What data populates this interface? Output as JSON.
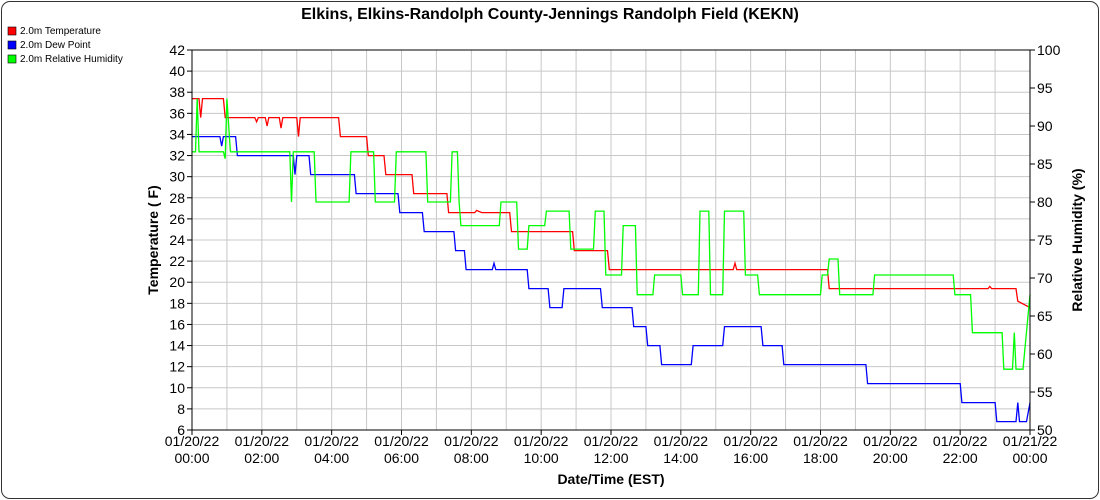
{
  "chart_data": {
    "type": "line",
    "title": "Elkins, Elkins-Randolph County-Jennings Randolph Field (KEKN)",
    "xlabel": "Date/Time (EST)",
    "ylabel": "Temperature ( F)",
    "y2label": "Relative Humidity (%)",
    "ylim": [
      6,
      42
    ],
    "y2lim": [
      50,
      100
    ],
    "xlim": [
      0,
      24
    ],
    "grid": true,
    "legend_position": "top-left",
    "x_ticks": [
      {
        "value": 0,
        "date": "01/20/22",
        "time": "00:00"
      },
      {
        "value": 2,
        "date": "01/20/22",
        "time": "02:00"
      },
      {
        "value": 4,
        "date": "01/20/22",
        "time": "04:00"
      },
      {
        "value": 6,
        "date": "01/20/22",
        "time": "06:00"
      },
      {
        "value": 8,
        "date": "01/20/22",
        "time": "08:00"
      },
      {
        "value": 10,
        "date": "01/20/22",
        "time": "10:00"
      },
      {
        "value": 12,
        "date": "01/20/22",
        "time": "12:00"
      },
      {
        "value": 14,
        "date": "01/20/22",
        "time": "14:00"
      },
      {
        "value": 16,
        "date": "01/20/22",
        "time": "16:00"
      },
      {
        "value": 18,
        "date": "01/20/22",
        "time": "18:00"
      },
      {
        "value": 20,
        "date": "01/20/22",
        "time": "20:00"
      },
      {
        "value": 22,
        "date": "01/20/22",
        "time": "22:00"
      },
      {
        "value": 24,
        "date": "01/21/22",
        "time": "00:00"
      }
    ],
    "y_ticks": [
      "6",
      "8",
      "10",
      "12",
      "14",
      "16",
      "18",
      "20",
      "22",
      "24",
      "26",
      "28",
      "30",
      "32",
      "34",
      "36",
      "38",
      "40",
      "42"
    ],
    "y2_ticks": [
      "50",
      "55",
      "60",
      "65",
      "70",
      "75",
      "80",
      "85",
      "90",
      "95",
      "100"
    ],
    "series": [
      {
        "name": "2.0m Temperature",
        "color": "#ff0000",
        "axis": "left",
        "points": [
          [
            0,
            37.4
          ],
          [
            0.2,
            37.4
          ],
          [
            0.25,
            35.6
          ],
          [
            0.3,
            37.4
          ],
          [
            0.9,
            37.4
          ],
          [
            0.95,
            35.6
          ],
          [
            1.8,
            35.6
          ],
          [
            1.85,
            35.2
          ],
          [
            1.9,
            35.6
          ],
          [
            2.1,
            35.6
          ],
          [
            2.15,
            34.8
          ],
          [
            2.2,
            35.6
          ],
          [
            2.5,
            35.6
          ],
          [
            2.55,
            34.6
          ],
          [
            2.6,
            35.6
          ],
          [
            3.0,
            35.6
          ],
          [
            3.05,
            33.8
          ],
          [
            3.1,
            35.6
          ],
          [
            4.2,
            35.6
          ],
          [
            4.25,
            33.8
          ],
          [
            5.0,
            33.8
          ],
          [
            5.05,
            32.0
          ],
          [
            5.5,
            32.0
          ],
          [
            5.55,
            30.2
          ],
          [
            6.3,
            30.2
          ],
          [
            6.35,
            28.4
          ],
          [
            7.3,
            28.4
          ],
          [
            7.35,
            26.6
          ],
          [
            8.1,
            26.6
          ],
          [
            8.15,
            26.8
          ],
          [
            8.3,
            26.6
          ],
          [
            9.1,
            26.6
          ],
          [
            9.15,
            24.8
          ],
          [
            10.9,
            24.8
          ],
          [
            10.95,
            23.0
          ],
          [
            11.9,
            23.0
          ],
          [
            11.95,
            21.2
          ],
          [
            15.5,
            21.2
          ],
          [
            15.55,
            21.8
          ],
          [
            15.6,
            21.2
          ],
          [
            18.2,
            21.2
          ],
          [
            18.25,
            19.4
          ],
          [
            22.8,
            19.4
          ],
          [
            22.85,
            19.6
          ],
          [
            22.9,
            19.4
          ],
          [
            23.6,
            19.4
          ],
          [
            23.65,
            18.2
          ],
          [
            24,
            17.6
          ]
        ]
      },
      {
        "name": "2.0m Dew Point",
        "color": "#0000ff",
        "axis": "left",
        "points": [
          [
            0,
            33.8
          ],
          [
            0.8,
            33.8
          ],
          [
            0.85,
            32.9
          ],
          [
            0.9,
            33.8
          ],
          [
            1.25,
            33.8
          ],
          [
            1.3,
            32.0
          ],
          [
            2.9,
            32.0
          ],
          [
            2.95,
            30.2
          ],
          [
            3.0,
            32.0
          ],
          [
            3.35,
            32.0
          ],
          [
            3.4,
            30.2
          ],
          [
            4.65,
            30.2
          ],
          [
            4.7,
            28.4
          ],
          [
            5.9,
            28.4
          ],
          [
            5.95,
            26.6
          ],
          [
            6.6,
            26.6
          ],
          [
            6.65,
            24.8
          ],
          [
            7.5,
            24.8
          ],
          [
            7.55,
            23.0
          ],
          [
            7.8,
            23.0
          ],
          [
            7.85,
            21.2
          ],
          [
            8.6,
            21.2
          ],
          [
            8.65,
            21.8
          ],
          [
            8.7,
            21.2
          ],
          [
            9.6,
            21.2
          ],
          [
            9.65,
            19.4
          ],
          [
            10.2,
            19.4
          ],
          [
            10.25,
            17.6
          ],
          [
            10.6,
            17.6
          ],
          [
            10.65,
            19.4
          ],
          [
            11.7,
            19.4
          ],
          [
            11.75,
            17.6
          ],
          [
            12.6,
            17.6
          ],
          [
            12.65,
            15.8
          ],
          [
            13.0,
            15.8
          ],
          [
            13.05,
            14.0
          ],
          [
            13.4,
            14.0
          ],
          [
            13.45,
            12.2
          ],
          [
            14.3,
            12.2
          ],
          [
            14.35,
            14.0
          ],
          [
            15.2,
            14.0
          ],
          [
            15.25,
            15.8
          ],
          [
            16.3,
            15.8
          ],
          [
            16.35,
            14.0
          ],
          [
            16.9,
            14.0
          ],
          [
            16.95,
            12.2
          ],
          [
            19.3,
            12.2
          ],
          [
            19.35,
            10.4
          ],
          [
            22.0,
            10.4
          ],
          [
            22.05,
            8.6
          ],
          [
            23.0,
            8.6
          ],
          [
            23.05,
            6.8
          ],
          [
            23.6,
            6.8
          ],
          [
            23.65,
            8.6
          ],
          [
            23.7,
            6.8
          ],
          [
            23.9,
            6.8
          ],
          [
            24,
            8.6
          ]
        ]
      },
      {
        "name": "2.0m Relative Humidity",
        "color": "#00ff00",
        "axis": "right",
        "points": [
          [
            0,
            86.6
          ],
          [
            0.1,
            86.6
          ],
          [
            0.15,
            93.6
          ],
          [
            0.2,
            86.6
          ],
          [
            0.9,
            86.6
          ],
          [
            0.95,
            85.7
          ],
          [
            1.0,
            93.6
          ],
          [
            1.1,
            86.6
          ],
          [
            2.8,
            86.6
          ],
          [
            2.85,
            80.0
          ],
          [
            2.9,
            86.6
          ],
          [
            3.5,
            86.6
          ],
          [
            3.55,
            80.0
          ],
          [
            4.5,
            80.0
          ],
          [
            4.55,
            86.6
          ],
          [
            5.2,
            86.6
          ],
          [
            5.25,
            80.0
          ],
          [
            5.8,
            80.0
          ],
          [
            5.85,
            86.6
          ],
          [
            6.7,
            86.6
          ],
          [
            6.75,
            80.0
          ],
          [
            7.4,
            80.0
          ],
          [
            7.45,
            86.6
          ],
          [
            7.6,
            86.6
          ],
          [
            7.65,
            80.0
          ],
          [
            7.7,
            76.9
          ],
          [
            8.8,
            76.9
          ],
          [
            8.85,
            80.0
          ],
          [
            9.3,
            80.0
          ],
          [
            9.35,
            73.8
          ],
          [
            9.6,
            73.8
          ],
          [
            9.65,
            76.9
          ],
          [
            10.1,
            76.9
          ],
          [
            10.15,
            78.8
          ],
          [
            10.8,
            78.8
          ],
          [
            10.85,
            73.8
          ],
          [
            11.5,
            73.8
          ],
          [
            11.55,
            78.8
          ],
          [
            11.8,
            78.8
          ],
          [
            11.85,
            70.4
          ],
          [
            12.3,
            70.4
          ],
          [
            12.35,
            76.9
          ],
          [
            12.7,
            76.9
          ],
          [
            12.75,
            67.8
          ],
          [
            13.2,
            67.8
          ],
          [
            13.25,
            70.4
          ],
          [
            14.0,
            70.4
          ],
          [
            14.05,
            67.8
          ],
          [
            14.5,
            67.8
          ],
          [
            14.55,
            78.8
          ],
          [
            14.8,
            78.8
          ],
          [
            14.85,
            67.8
          ],
          [
            15.2,
            67.8
          ],
          [
            15.25,
            78.8
          ],
          [
            15.8,
            78.8
          ],
          [
            15.85,
            70.4
          ],
          [
            16.2,
            70.4
          ],
          [
            16.25,
            67.8
          ],
          [
            18.0,
            67.8
          ],
          [
            18.05,
            70.4
          ],
          [
            18.2,
            70.4
          ],
          [
            18.25,
            72.5
          ],
          [
            18.5,
            72.5
          ],
          [
            18.55,
            67.8
          ],
          [
            19.5,
            67.8
          ],
          [
            19.55,
            70.4
          ],
          [
            21.8,
            70.4
          ],
          [
            21.85,
            67.8
          ],
          [
            22.3,
            67.8
          ],
          [
            22.35,
            62.8
          ],
          [
            23.2,
            62.8
          ],
          [
            23.25,
            58.0
          ],
          [
            23.5,
            58.0
          ],
          [
            23.55,
            62.8
          ],
          [
            23.6,
            58.0
          ],
          [
            23.8,
            58.0
          ],
          [
            24,
            67.8
          ]
        ]
      }
    ]
  }
}
